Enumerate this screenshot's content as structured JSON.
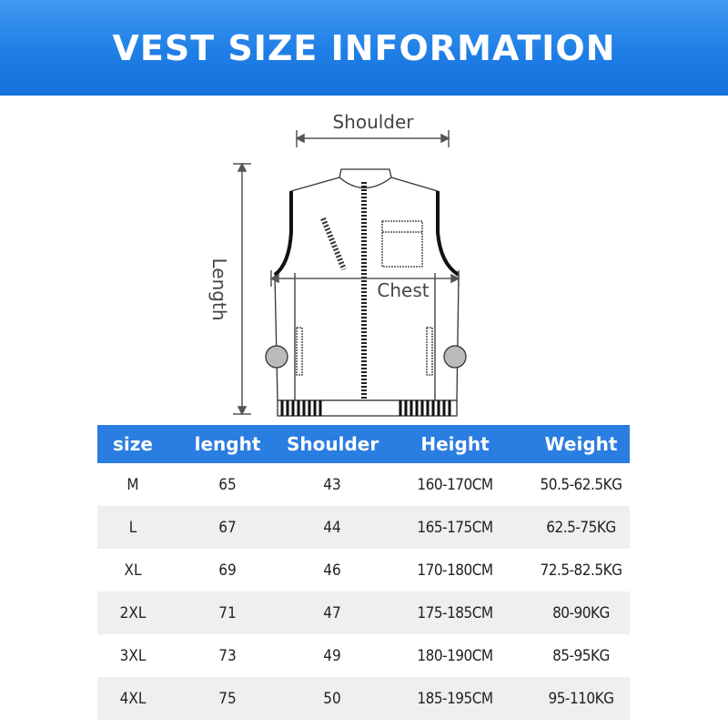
{
  "title": "VEST SIZE INFORMATION",
  "diagram": {
    "shoulder_label": "Shoulder",
    "length_label": "Length",
    "chest_label": "Chest"
  },
  "table": {
    "headers": [
      "size",
      "lenght",
      "Shoulder",
      "Height",
      "Weight"
    ],
    "header_color": "#2a7de1",
    "rows": [
      [
        "M",
        "65",
        "43",
        "160-170CM",
        "50.5-62.5KG"
      ],
      [
        "L",
        "67",
        "44",
        "165-175CM",
        "62.5-75KG"
      ],
      [
        "XL",
        "69",
        "46",
        "170-180CM",
        "72.5-82.5KG"
      ],
      [
        "2XL",
        "71",
        "47",
        "175-185CM",
        "80-90KG"
      ],
      [
        "3XL",
        "73",
        "49",
        "180-190CM",
        "85-95KG"
      ],
      [
        "4XL",
        "75",
        "50",
        "185-195CM",
        "95-110KG"
      ]
    ]
  }
}
